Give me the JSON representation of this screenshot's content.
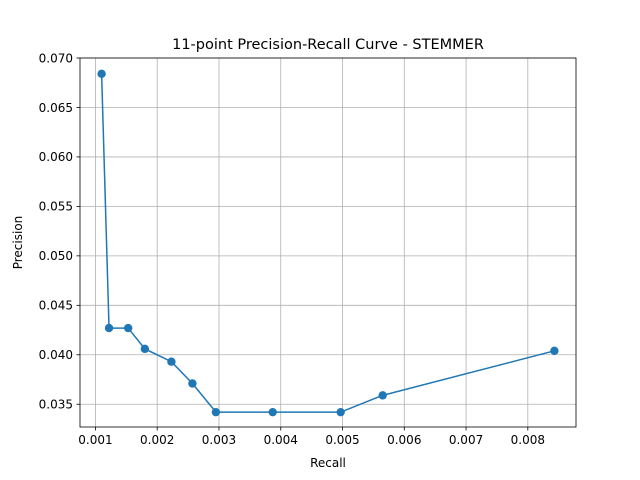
{
  "chart_data": {
    "type": "line",
    "title": "11-point Precision-Recall Curve - STEMMER",
    "xlabel": "Recall",
    "ylabel": "Precision",
    "xlim": [
      0.00075,
      0.00878
    ],
    "ylim": [
      0.0327,
      0.07
    ],
    "xticks": [
      0.001,
      0.002,
      0.003,
      0.004,
      0.005,
      0.006,
      0.007,
      0.008
    ],
    "xtick_labels": [
      "0.001",
      "0.002",
      "0.003",
      "0.004",
      "0.005",
      "0.006",
      "0.007",
      "0.008"
    ],
    "yticks": [
      0.035,
      0.04,
      0.045,
      0.05,
      0.055,
      0.06,
      0.065,
      0.07
    ],
    "ytick_labels": [
      "0.035",
      "0.040",
      "0.045",
      "0.050",
      "0.055",
      "0.060",
      "0.065",
      "0.070"
    ],
    "grid": true,
    "marker": "circle",
    "color": "#1f77b4",
    "series": [
      {
        "x": [
          0.0011,
          0.00122,
          0.00153,
          0.0018,
          0.00223,
          0.00257,
          0.00295,
          0.00387,
          0.00497,
          0.00565,
          0.00843
        ],
        "y": [
          0.0684,
          0.0427,
          0.0427,
          0.0406,
          0.0393,
          0.0371,
          0.0342,
          0.0342,
          0.0342,
          0.0359,
          0.0404
        ]
      }
    ]
  }
}
